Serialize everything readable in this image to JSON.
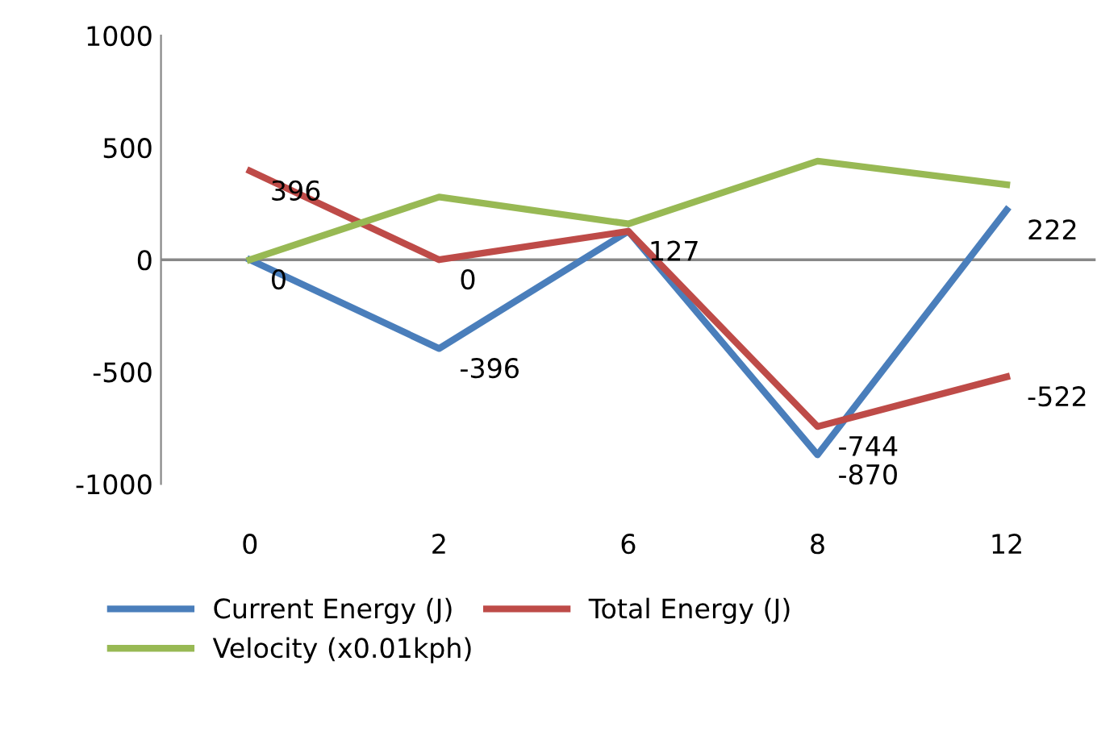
{
  "chart_data": {
    "type": "line",
    "categories": [
      "0",
      "2",
      "6",
      "8",
      "12"
    ],
    "series": [
      {
        "name": "Current Energy (J)",
        "color": "#4a7ebb",
        "values": [
          0,
          -396,
          127,
          -870,
          222
        ],
        "value_labels": [
          "0",
          "-396",
          "127",
          "-870",
          "222"
        ]
      },
      {
        "name": "Total Energy (J)",
        "color": "#be4b48",
        "values": [
          396,
          0,
          127,
          -744,
          -522
        ],
        "value_labels": [
          "396",
          "0",
          null,
          "-744",
          "-522"
        ]
      },
      {
        "name": "Velocity (x0.01kph)",
        "color": "#98b954",
        "values": [
          0,
          280,
          160,
          440,
          335
        ]
      }
    ],
    "ylim": [
      -1000,
      1000
    ],
    "yticks": [
      -1000,
      -500,
      0,
      500,
      1000
    ],
    "ref_lines": [
      {
        "axis": "y",
        "value": 0,
        "color": "#888888"
      }
    ],
    "grid": false,
    "legend": "bottom",
    "marker": "none",
    "line_style": "solid"
  }
}
